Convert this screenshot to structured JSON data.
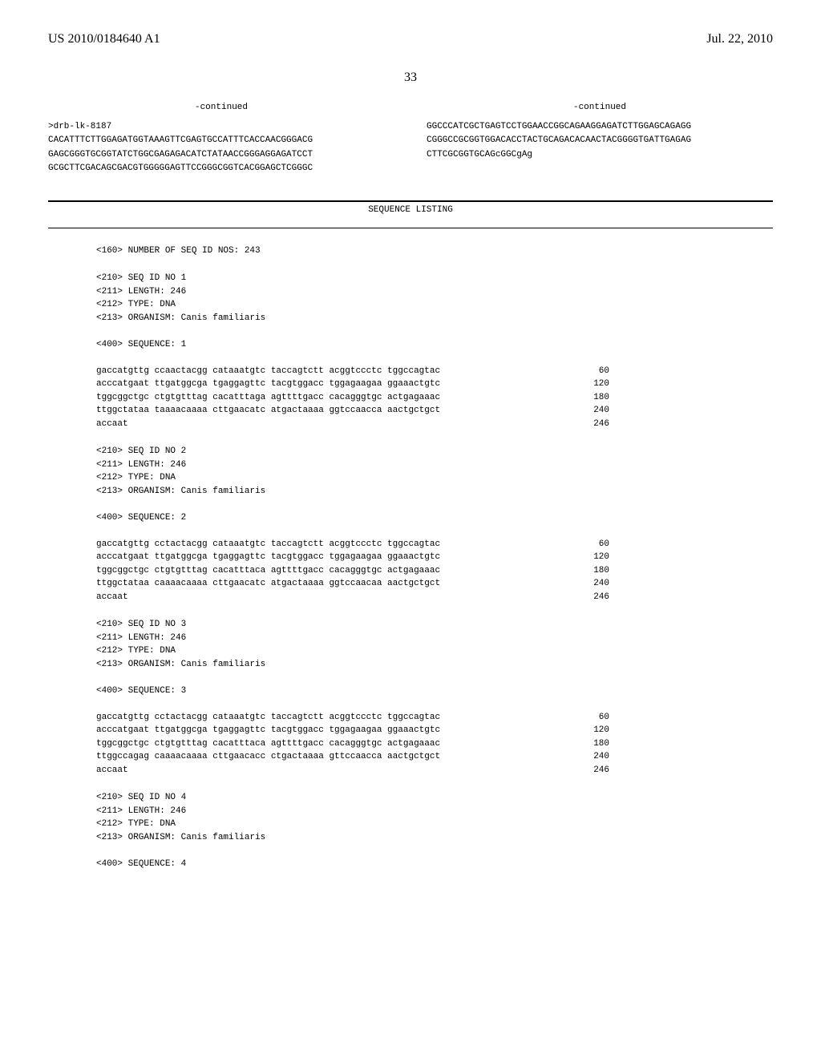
{
  "header": {
    "pub_number": "US 2010/0184640 A1",
    "pub_date": "Jul. 22, 2010"
  },
  "page_number": "33",
  "continued_label": "-continued",
  "left_col": {
    "id_line": ">drb-lk-8187",
    "seq_lines": [
      "CACATTTCTTGGAGATGGTAAAGTTCGAGTGCCATTTCACCAACGGGACG",
      "GAGCGGGTGCGGTATCTGGCGAGAGACATCTATAACCGGGAGGAGATCCT",
      "GCGCTTCGACAGCGACGTGGGGGAGTTCCGGGCGGTCACGGAGCTCGGGC"
    ]
  },
  "right_col": {
    "seq_lines": [
      "GGCCCATCGCTGAGTCCTGGAACCGGCAGAAGGAGATCTTGGAGCAGAGG",
      "CGGGCCGCGGTGGACACCTACTGCAGACACAACTACGGGGTGATTGAGAG",
      "CTTCGCGGTGCAGcGGCgAg"
    ]
  },
  "listing": {
    "title": "SEQUENCE LISTING",
    "num_seqs": "<160> NUMBER OF SEQ ID NOS: 243",
    "entries": [
      {
        "meta": [
          "<210> SEQ ID NO 1",
          "<211> LENGTH: 246",
          "<212> TYPE: DNA",
          "<213> ORGANISM: Canis familiaris"
        ],
        "seq_label": "<400> SEQUENCE: 1",
        "lines": [
          {
            "text": "gaccatgttg ccaactacgg cataaatgtc taccagtctt acggtccctc tggccagtac",
            "num": "60"
          },
          {
            "text": "acccatgaat ttgatggcga tgaggagttc tacgtggacc tggagaagaa ggaaactgtc",
            "num": "120"
          },
          {
            "text": "tggcggctgc ctgtgtttag cacatttaga agttttgacc cacagggtgc actgagaaac",
            "num": "180"
          },
          {
            "text": "ttggctataa taaaacaaaa cttgaacatc atgactaaaa ggtccaacca aactgctgct",
            "num": "240"
          },
          {
            "text": "accaat",
            "num": "246"
          }
        ]
      },
      {
        "meta": [
          "<210> SEQ ID NO 2",
          "<211> LENGTH: 246",
          "<212> TYPE: DNA",
          "<213> ORGANISM: Canis familiaris"
        ],
        "seq_label": "<400> SEQUENCE: 2",
        "lines": [
          {
            "text": "gaccatgttg cctactacgg cataaatgtc taccagtctt acggtccctc tggccagtac",
            "num": "60"
          },
          {
            "text": "acccatgaat ttgatggcga tgaggagttc tacgtggacc tggagaagaa ggaaactgtc",
            "num": "120"
          },
          {
            "text": "tggcggctgc ctgtgtttag cacatttaca agttttgacc cacagggtgc actgagaaac",
            "num": "180"
          },
          {
            "text": "ttggctataa caaaacaaaa cttgaacatc atgactaaaa ggtccaacaa aactgctgct",
            "num": "240"
          },
          {
            "text": "accaat",
            "num": "246"
          }
        ]
      },
      {
        "meta": [
          "<210> SEQ ID NO 3",
          "<211> LENGTH: 246",
          "<212> TYPE: DNA",
          "<213> ORGANISM: Canis familiaris"
        ],
        "seq_label": "<400> SEQUENCE: 3",
        "lines": [
          {
            "text": "gaccatgttg cctactacgg cataaatgtc taccagtctt acggtccctc tggccagtac",
            "num": "60"
          },
          {
            "text": "acccatgaat ttgatggcga tgaggagttc tacgtggacc tggagaagaa ggaaactgtc",
            "num": "120"
          },
          {
            "text": "tggcggctgc ctgtgtttag cacatttaca agttttgacc cacagggtgc actgagaaac",
            "num": "180"
          },
          {
            "text": "ttggccagag caaaacaaaa cttgaacacc ctgactaaaa gttccaacca aactgctgct",
            "num": "240"
          },
          {
            "text": "accaat",
            "num": "246"
          }
        ]
      },
      {
        "meta": [
          "<210> SEQ ID NO 4",
          "<211> LENGTH: 246",
          "<212> TYPE: DNA",
          "<213> ORGANISM: Canis familiaris"
        ],
        "seq_label": "<400> SEQUENCE: 4",
        "lines": []
      }
    ]
  }
}
